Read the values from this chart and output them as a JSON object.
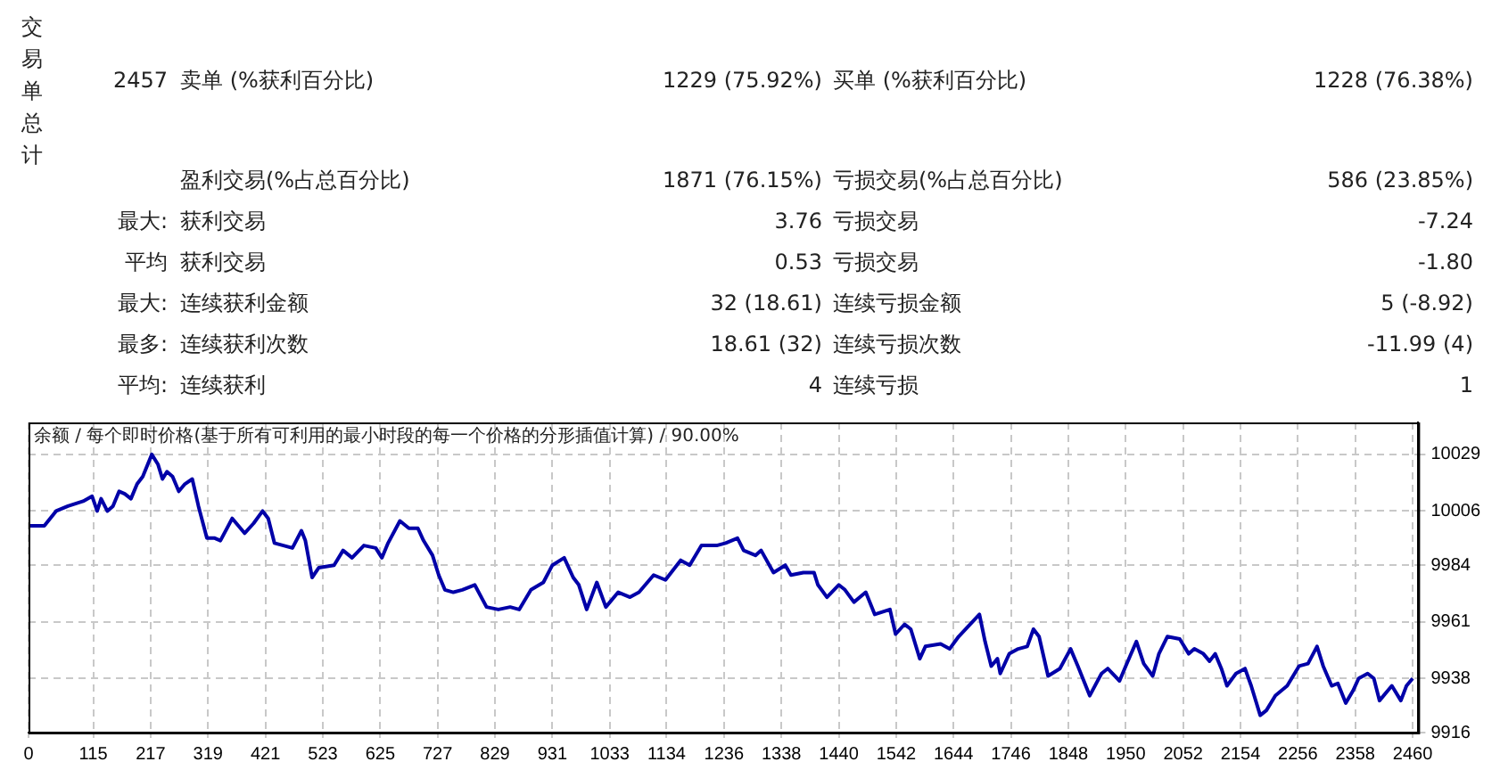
{
  "chart_data": {
    "type": "line",
    "title": "余额 / 每个即时价格(基于所有可利用的最小时段的每一个价格的分形插值计算) / 90.00%",
    "annotations": [
      "交易单总计",
      "2457",
      "卖单 (%获利百分比)",
      "1229 (75.92%)",
      "买单 (%获利百分比)",
      "1228 (76.38%)",
      "盈利交易(%占总百分比)",
      "1871 (76.15%)",
      "亏损交易(%占总百分比)",
      "586 (23.85%)",
      "最大:",
      "获利交易",
      "3.76",
      "亏损交易",
      "-7.24",
      "平均",
      "获利交易",
      "0.53",
      "亏损交易",
      "-1.80",
      "最大:",
      "连续获利金额",
      "32 (18.61)",
      "连续亏损金额",
      "5 (-8.92)",
      "最多:",
      "连续获利次数",
      "18.61 (32)",
      "连续亏损次数",
      "-11.99 (4)",
      "平均:",
      "连续获利",
      "4",
      "连续亏损",
      "1"
    ],
    "x": [
      0,
      28,
      49,
      70,
      97,
      113,
      122,
      129,
      140,
      150,
      161,
      171,
      182,
      193,
      203,
      219,
      230,
      238,
      246,
      256,
      267,
      278,
      291,
      302,
      317,
      331,
      341,
      362,
      373,
      384,
      400,
      416,
      426,
      437,
      453,
      469,
      485,
      492,
      504,
      516,
      543,
      559,
      575,
      596,
      617,
      628,
      639,
      660,
      676,
      692,
      702,
      718,
      729,
      740,
      755,
      771,
      793,
      814,
      835,
      856,
      872,
      893,
      915,
      931,
      952,
      968,
      978,
      992,
      1010,
      1026,
      1048,
      1069,
      1085,
      1111,
      1132,
      1159,
      1175,
      1196,
      1223,
      1239,
      1260,
      1271,
      1292,
      1302,
      1324,
      1345,
      1355,
      1377,
      1396,
      1403,
      1419,
      1440,
      1451,
      1467,
      1488,
      1504,
      1531,
      1541,
      1557,
      1568,
      1584,
      1594,
      1621,
      1637,
      1653,
      1690,
      1700,
      1711,
      1722,
      1727,
      1743,
      1759,
      1775,
      1786,
      1796,
      1812,
      1833,
      1852,
      1865,
      1886,
      1907,
      1918,
      1939,
      1950,
      1969,
      1982,
      1998,
      2009,
      2024,
      2046,
      2062,
      2072,
      2088,
      2099,
      2109,
      2120,
      2130,
      2146,
      2162,
      2173,
      2189,
      2200,
      2216,
      2237,
      2258,
      2274,
      2290,
      2301,
      2316,
      2327,
      2341,
      2354,
      2364,
      2380,
      2391,
      2401,
      2423,
      2439,
      2449,
      2460
    ],
    "series": [
      {
        "color": "#0000a8",
        "values": [
          10000,
          10000,
          10006,
          10008,
          10010,
          10012,
          10006,
          10011,
          10006,
          10008,
          10014,
          10013,
          10011,
          10017,
          10020,
          10029,
          10025,
          10019,
          10022,
          10020,
          10014,
          10017,
          10019,
          10008,
          9995,
          9995,
          9994,
          10003,
          10000,
          9997,
          10001,
          10006,
          10003,
          9993,
          9992,
          9991,
          9998,
          9994,
          9979,
          9983,
          9984,
          9990,
          9987,
          9992,
          9991,
          9987,
          9993,
          10002,
          9999,
          9999,
          9994,
          9988,
          9980,
          9974,
          9973,
          9974,
          9976,
          9967,
          9966,
          9967,
          9966,
          9974,
          9977,
          9984,
          9987,
          9979,
          9976,
          9966,
          9977,
          9967,
          9973,
          9971,
          9973,
          9980,
          9978,
          9986,
          9984,
          9992,
          9992,
          9993,
          9995,
          9990,
          9988,
          9990,
          9981,
          9984,
          9980,
          9981,
          9981,
          9976,
          9971,
          9976,
          9974,
          9969,
          9973,
          9964,
          9966,
          9956,
          9960,
          9958,
          9946,
          9951,
          9952,
          9950,
          9955,
          9964,
          9953,
          9943,
          9946,
          9940,
          9948,
          9950,
          9951,
          9958,
          9955,
          9939,
          9942,
          9950,
          9943,
          9931,
          9940,
          9942,
          9937,
          9943,
          9953,
          9944,
          9939,
          9948,
          9955,
          9954,
          9948,
          9950,
          9948,
          9945,
          9948,
          9942,
          9935,
          9940,
          9942,
          9935,
          9923,
          9925,
          9931,
          9935,
          9943,
          9944,
          9951,
          9943,
          9935,
          9936,
          9928,
          9933,
          9938,
          9940,
          9938,
          9929,
          9935,
          9929,
          9935,
          9938
        ]
      }
    ],
    "xlim": [
      0,
      2470
    ],
    "xticks": [
      0,
      115,
      217,
      319,
      421,
      523,
      625,
      727,
      829,
      931,
      1033,
      1134,
      1236,
      1338,
      1440,
      1542,
      1644,
      1746,
      1848,
      1950,
      2052,
      2154,
      2256,
      2358,
      2460
    ],
    "ylim": [
      9916,
      10042
    ],
    "yticks": [
      9916,
      9938,
      9961,
      9984,
      10006,
      10029
    ],
    "grid": true,
    "legend": false,
    "marker": "none",
    "line_style": "solid"
  }
}
